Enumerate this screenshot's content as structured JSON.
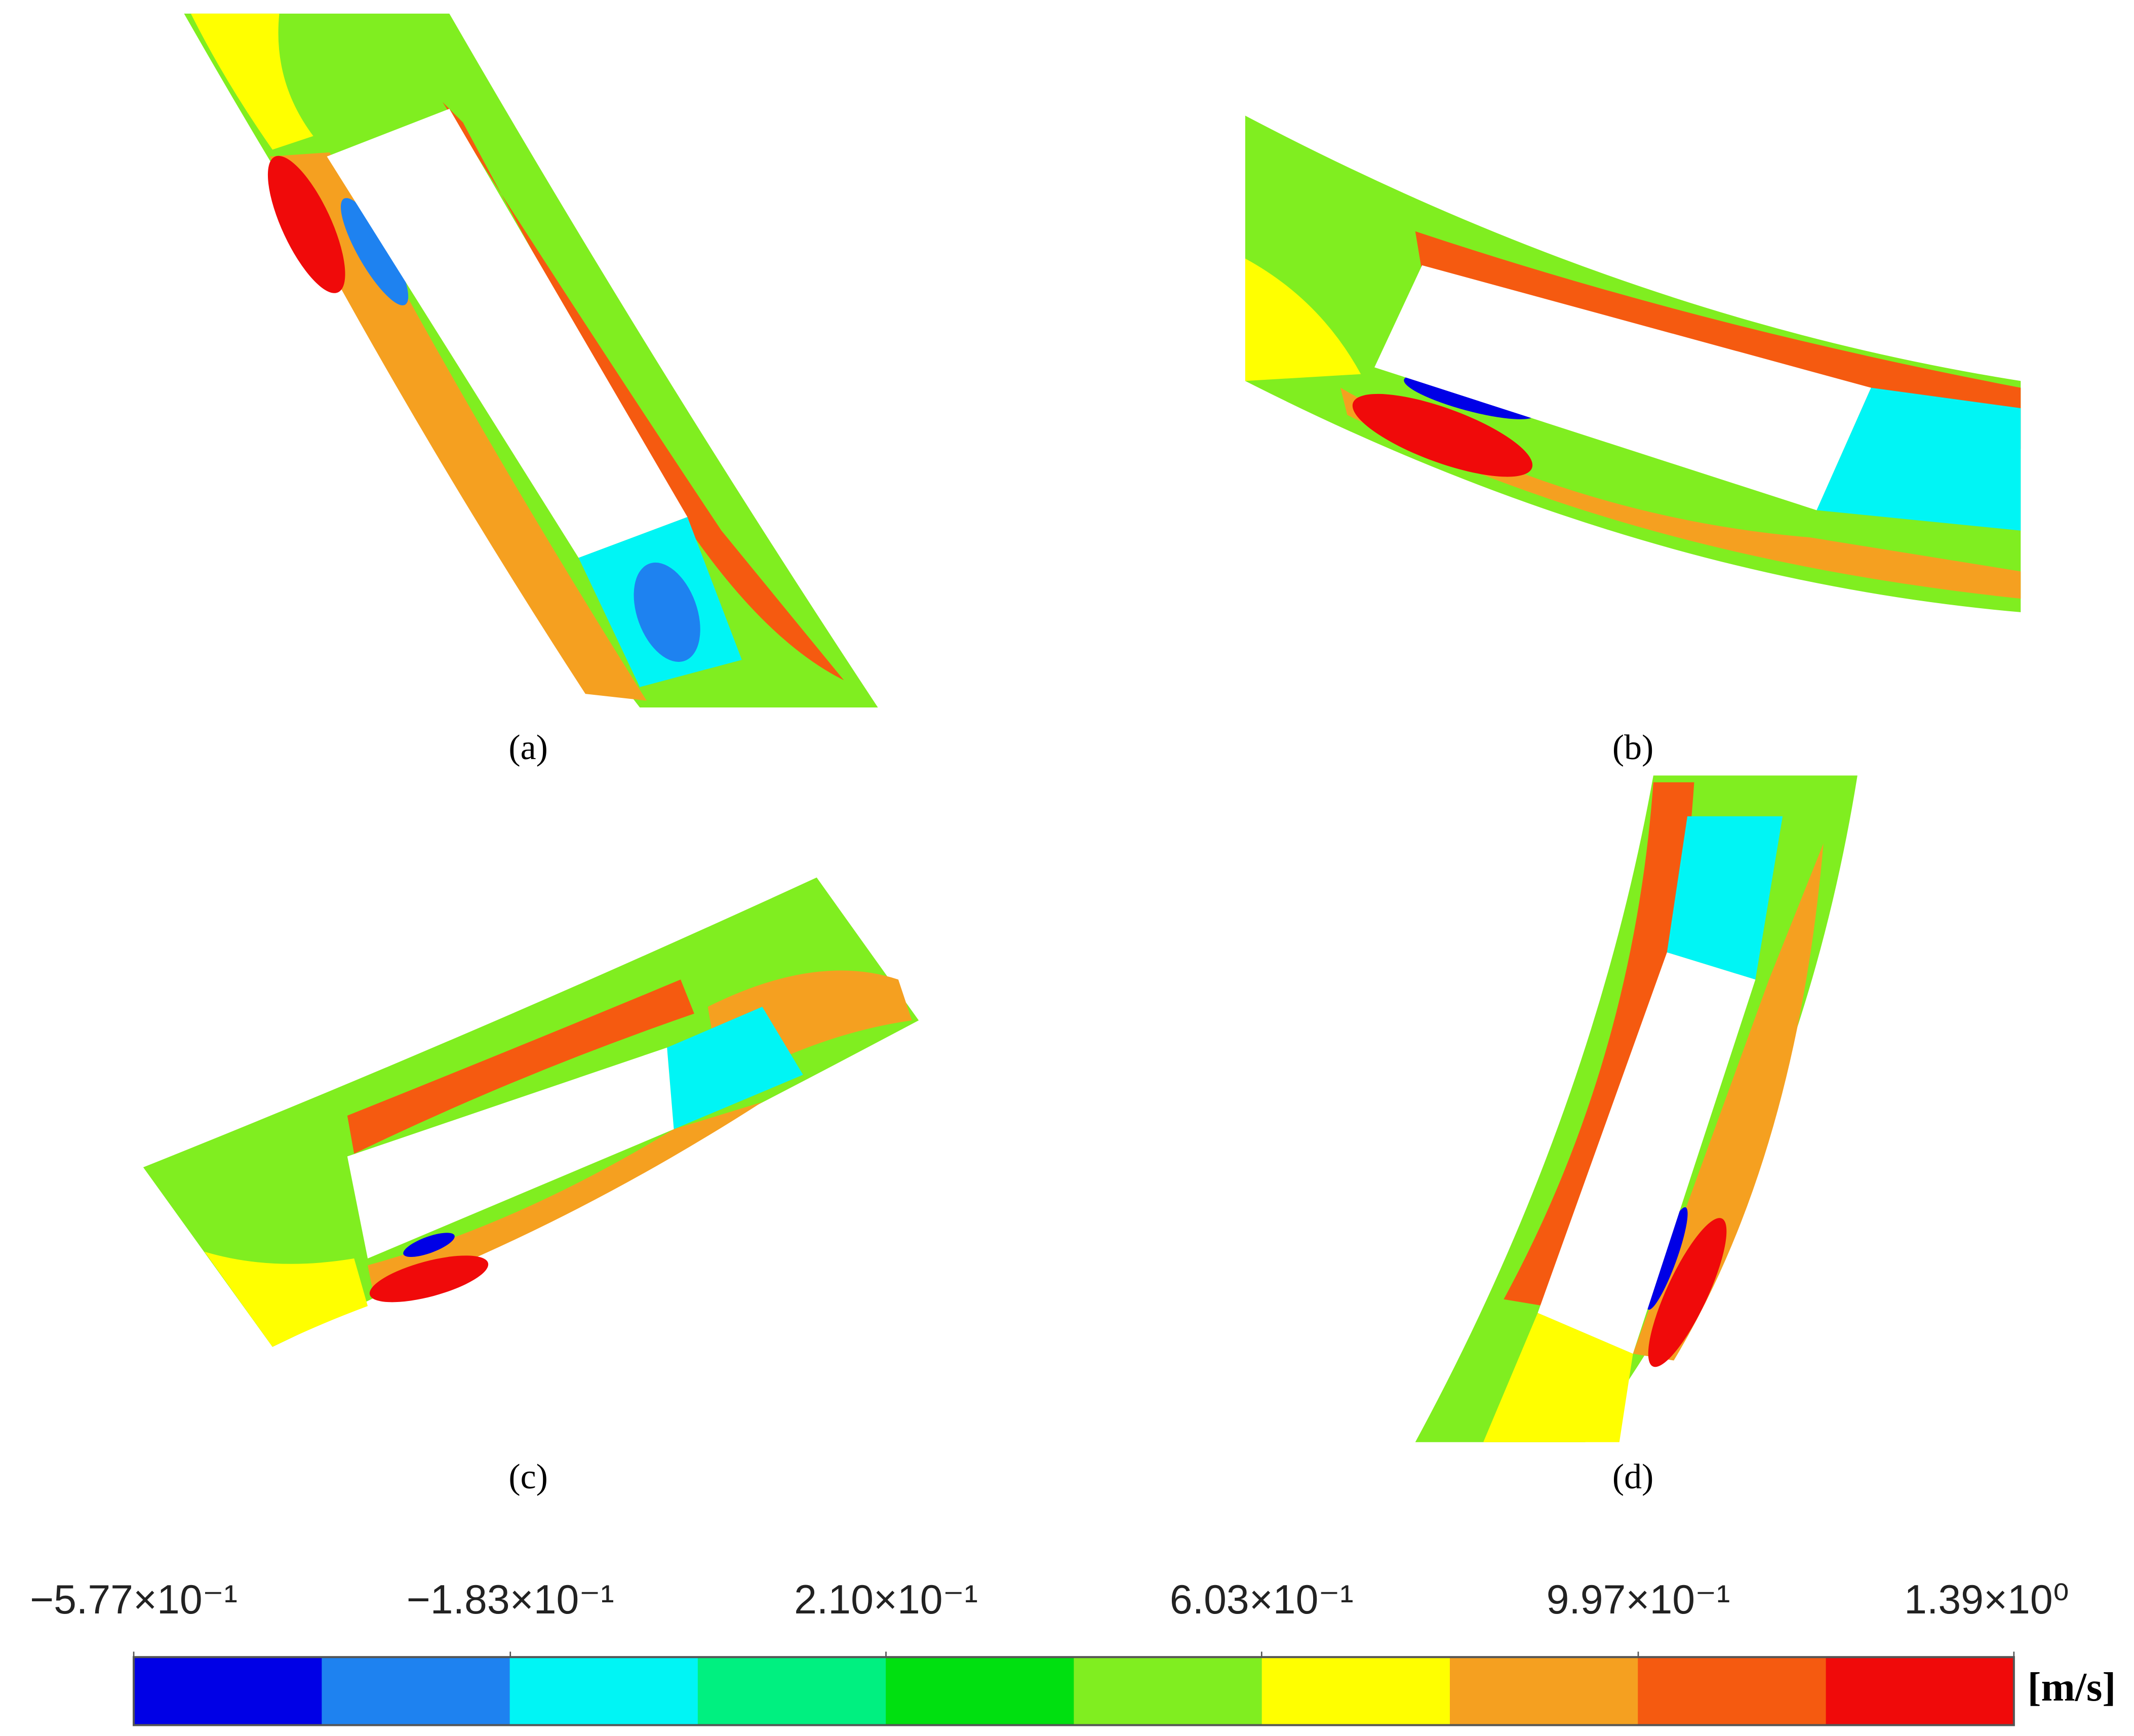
{
  "panels": [
    {
      "label": "(a)"
    },
    {
      "label": "(b)"
    },
    {
      "label": "(c)"
    },
    {
      "label": "(d)"
    }
  ],
  "colorbar": {
    "lim": [
      -0.577,
      1.39
    ],
    "colors": [
      "#0000e6",
      "#1e82f0",
      "#00f5f5",
      "#00f080",
      "#00e010",
      "#80ee20",
      "#ffff00",
      "#f5a020",
      "#f55a10",
      "#f00a0a"
    ],
    "ticks": [
      {
        "value": -0.577,
        "label": "−5.77×10⁻¹"
      },
      {
        "value": -0.183,
        "label": "−1.83×10⁻¹"
      },
      {
        "value": 0.21,
        "label": "2.10×10⁻¹"
      },
      {
        "value": 0.603,
        "label": "6.03×10⁻¹"
      },
      {
        "value": 0.997,
        "label": "9.97×10⁻¹"
      },
      {
        "value": 1.39,
        "label": "1.39×10⁰"
      }
    ],
    "unit": "[m/s]"
  }
}
